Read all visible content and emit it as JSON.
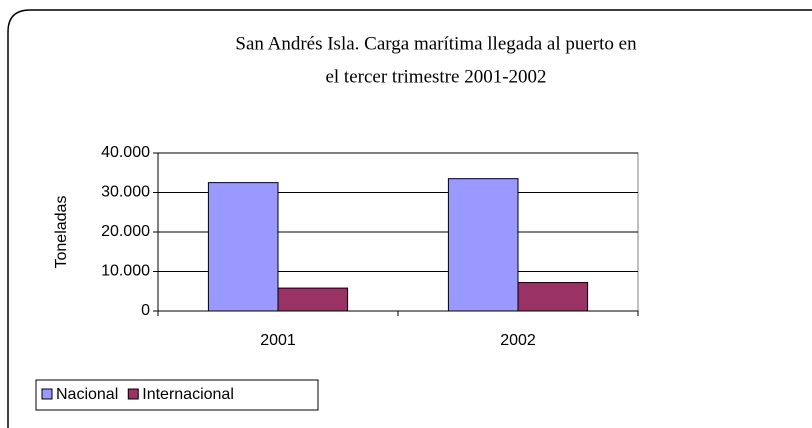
{
  "chart_data": {
    "type": "bar",
    "title": "San Andrés Isla. Carga marítima llegada al puerto en",
    "subtitle": "el tercer trimestre 2001-2002",
    "y_label": "Toneladas",
    "categories": [
      "2001",
      "2002"
    ],
    "series": [
      {
        "name": "Nacional",
        "color": "#9999ff",
        "values": [
          32500,
          33500
        ]
      },
      {
        "name": "Internacional",
        "color": "#993366",
        "values": [
          5800,
          7200
        ]
      }
    ],
    "ylim": [
      0,
      40000
    ],
    "yticks": [
      0,
      {
        "value": 10000,
        "label": "10.000"
      },
      {
        "value": 20000,
        "label": "20.000"
      },
      {
        "value": 30000,
        "label": "30.000"
      },
      {
        "value": 40000,
        "label": "40.000"
      }
    ],
    "grid": true,
    "legend": "bottom-left"
  }
}
